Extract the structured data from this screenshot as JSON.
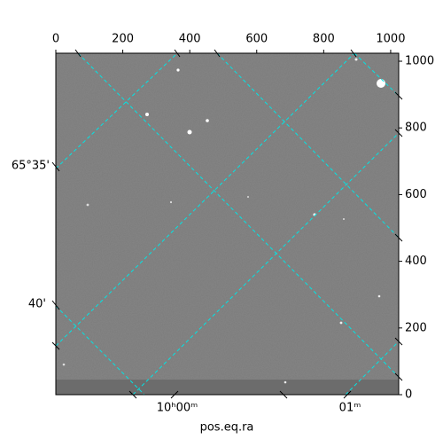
{
  "chart_data": {
    "type": "image",
    "xlim": [
      0,
      1024
    ],
    "ylim": [
      0,
      1024
    ],
    "xticks": [
      0,
      200,
      400,
      600,
      800,
      1000
    ],
    "yticks": [
      0,
      200,
      400,
      600,
      800,
      1000
    ],
    "x_world_ticklabels": [
      "10ʰ00ᵐ",
      "01ᵐ"
    ],
    "y_world_ticklabels": [
      "65°35'",
      "40'"
    ],
    "xlabel": "pos.eq.ra",
    "grid_color": "#00e5e5"
  }
}
